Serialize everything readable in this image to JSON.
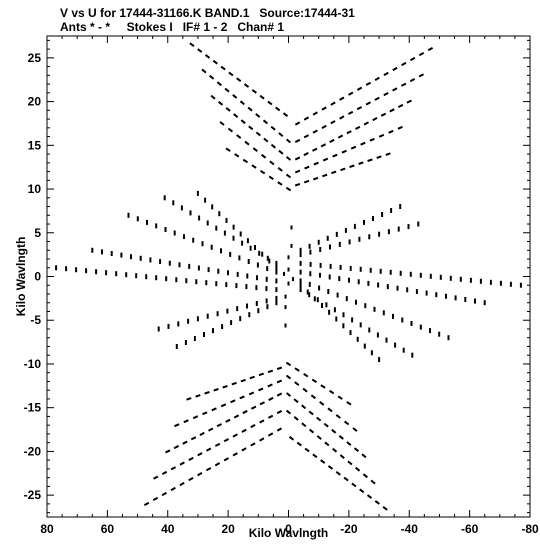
{
  "chart_data": {
    "type": "scatter",
    "title": "V vs U for 17444-31166.K BAND.1   Source:17444-31",
    "subtitle": "Ants * - *     Stokes I   IF# 1 - 2   Chan# 1",
    "xlabel": "Kilo Wavlngth",
    "ylabel": "Kilo Wavlngth",
    "xlim": [
      80,
      -80
    ],
    "ylim": [
      -27.5,
      27.5
    ],
    "x_ticks": [
      80,
      60,
      40,
      20,
      0,
      -20,
      -40,
      -60,
      -80
    ],
    "y_ticks": [
      25,
      20,
      15,
      10,
      5,
      0,
      -5,
      -10,
      -15,
      -20,
      -25
    ],
    "grid": false,
    "tracks_vertical_top": [
      {
        "a": [
          32,
          26.5
        ],
        "b": [
          1,
          18.5
        ]
      },
      {
        "a": [
          28,
          23.5
        ],
        "b": [
          0,
          15.5
        ]
      },
      {
        "a": [
          25,
          20.5
        ],
        "b": [
          0,
          13.5
        ]
      },
      {
        "a": [
          22,
          17.5
        ],
        "b": [
          0,
          11.5
        ]
      },
      {
        "a": [
          20,
          14.5
        ],
        "b": [
          0,
          10.0
        ]
      },
      {
        "a": [
          -3,
          17.5
        ],
        "b": [
          -47,
          26.0
        ]
      },
      {
        "a": [
          -3,
          15.5
        ],
        "b": [
          -44,
          23.0
        ]
      },
      {
        "a": [
          -3,
          13.5
        ],
        "b": [
          -40,
          20.0
        ]
      },
      {
        "a": [
          -3,
          12.0
        ],
        "b": [
          -37,
          17.0
        ]
      },
      {
        "a": [
          -3,
          10.5
        ],
        "b": [
          -33,
          14.0
        ]
      }
    ],
    "tracks_horizontal": [
      {
        "a": [
          4,
          1.5
        ],
        "b": [
          41,
          9.0
        ]
      },
      {
        "a": [
          4,
          0.5
        ],
        "b": [
          53,
          7.0
        ]
      },
      {
        "a": [
          4,
          -0.5
        ],
        "b": [
          65,
          3.0
        ]
      },
      {
        "a": [
          4,
          -1.5
        ],
        "b": [
          77,
          1.0
        ]
      },
      {
        "a": [
          4,
          -2.5
        ],
        "b": [
          43,
          -6.0
        ]
      },
      {
        "a": [
          4,
          -3.0
        ],
        "b": [
          37,
          -8.0
        ]
      },
      {
        "a": [
          4,
          1.0
        ],
        "b": [
          30,
          9.5
        ]
      },
      {
        "a": [
          -4,
          -1.5
        ],
        "b": [
          -41,
          -9.0
        ]
      },
      {
        "a": [
          -4,
          -0.5
        ],
        "b": [
          -53,
          -7.0
        ]
      },
      {
        "a": [
          -4,
          0.5
        ],
        "b": [
          -65,
          -3.0
        ]
      },
      {
        "a": [
          -4,
          1.5
        ],
        "b": [
          -77,
          -1.0
        ]
      },
      {
        "a": [
          -4,
          2.5
        ],
        "b": [
          -43,
          6.0
        ]
      },
      {
        "a": [
          -4,
          3.0
        ],
        "b": [
          -37,
          8.0
        ]
      },
      {
        "a": [
          -4,
          -1.0
        ],
        "b": [
          -30,
          -9.5
        ]
      }
    ],
    "tracks_vertical_bottom": [
      {
        "a": [
          -32,
          -26.5
        ],
        "b": [
          -1,
          -18.5
        ]
      },
      {
        "a": [
          -28,
          -23.5
        ],
        "b": [
          0,
          -15.5
        ]
      },
      {
        "a": [
          -25,
          -20.5
        ],
        "b": [
          0,
          -13.5
        ]
      },
      {
        "a": [
          -22,
          -17.5
        ],
        "b": [
          0,
          -11.5
        ]
      },
      {
        "a": [
          -20,
          -14.5
        ],
        "b": [
          0,
          -10.0
        ]
      },
      {
        "a": [
          3,
          -17.5
        ],
        "b": [
          47,
          -26.0
        ]
      },
      {
        "a": [
          3,
          -15.5
        ],
        "b": [
          44,
          -23.0
        ]
      },
      {
        "a": [
          3,
          -13.5
        ],
        "b": [
          40,
          -20.0
        ]
      },
      {
        "a": [
          3,
          -12.0
        ],
        "b": [
          37,
          -17.0
        ]
      },
      {
        "a": [
          3,
          -10.5
        ],
        "b": [
          33,
          -14.0
        ]
      }
    ],
    "scatter_center_points": [
      [
        0,
        2.2
      ],
      [
        -1,
        3.5
      ],
      [
        -1,
        5.6
      ],
      [
        1,
        -2.3
      ],
      [
        1,
        -3.5
      ],
      [
        1,
        -5.6
      ],
      [
        0,
        0.8
      ],
      [
        0,
        -0.8
      ],
      [
        1.5,
        0.3
      ],
      [
        -1.5,
        -0.3
      ]
    ]
  }
}
